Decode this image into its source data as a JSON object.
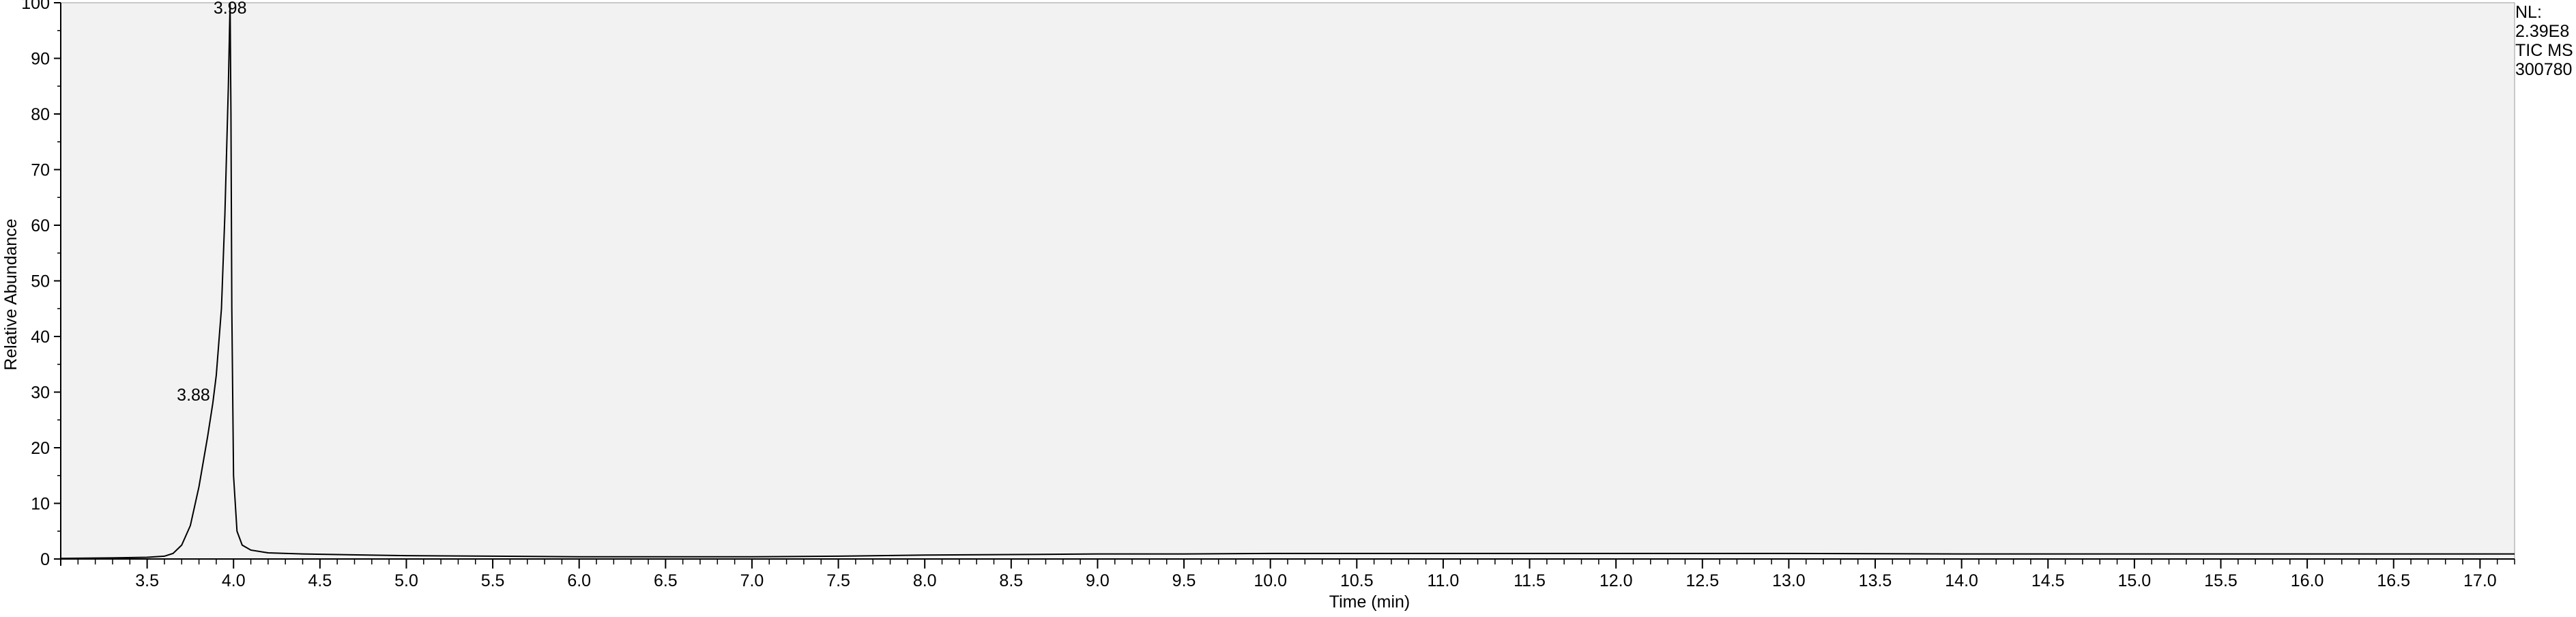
{
  "chart_data": {
    "type": "line",
    "title": "",
    "xlabel": "Time (min)",
    "ylabel": "Relative Abundance",
    "xlim": [
      3.0,
      17.2
    ],
    "ylim": [
      0,
      100
    ],
    "x_ticks": [
      "3.5",
      "4.0",
      "4.5",
      "5.0",
      "5.5",
      "6.0",
      "6.5",
      "7.0",
      "7.5",
      "8.0",
      "8.5",
      "9.0",
      "9.5",
      "10.0",
      "10.5",
      "11.0",
      "11.5",
      "12.0",
      "12.5",
      "13.0",
      "13.5",
      "14.0",
      "14.5",
      "15.0",
      "15.5",
      "16.0",
      "16.5",
      "17.0"
    ],
    "y_ticks": [
      "0",
      "10",
      "20",
      "30",
      "40",
      "50",
      "60",
      "70",
      "80",
      "90",
      "100"
    ],
    "series": [
      {
        "name": "TIC MS 300780",
        "x": [
          3.0,
          3.3,
          3.5,
          3.6,
          3.65,
          3.7,
          3.75,
          3.8,
          3.85,
          3.88,
          3.9,
          3.93,
          3.95,
          3.97,
          3.98,
          3.985,
          3.99,
          4.0,
          4.02,
          4.05,
          4.1,
          4.2,
          4.4,
          4.6,
          5.0,
          5.5,
          6.0,
          6.5,
          7.0,
          7.5,
          8.0,
          8.5,
          9.0,
          9.5,
          10.0,
          11.0,
          12.0,
          13.0,
          14.0,
          15.0,
          16.0,
          17.0,
          17.2
        ],
        "y": [
          0.1,
          0.2,
          0.3,
          0.5,
          1.0,
          2.5,
          6.0,
          13.0,
          22.0,
          28.0,
          33.0,
          45.0,
          62.0,
          85.0,
          100.0,
          80.0,
          45.0,
          15.0,
          5.0,
          2.5,
          1.6,
          1.1,
          0.9,
          0.8,
          0.6,
          0.5,
          0.4,
          0.4,
          0.4,
          0.5,
          0.7,
          0.8,
          0.9,
          0.9,
          1.0,
          1.0,
          1.0,
          1.0,
          0.9,
          0.9,
          0.9,
          0.9,
          0.9
        ]
      }
    ],
    "annotations": [
      {
        "label": "3.98",
        "x": 3.98,
        "y": 100
      },
      {
        "label": "3.88",
        "x": 3.88,
        "y": 28
      }
    ],
    "grid": false,
    "legend": "none"
  },
  "info_block": {
    "nl_label": "NL:",
    "nl_value": "2.39E8",
    "trace": "TIC  MS",
    "sample": "300780"
  },
  "colors": {
    "plot_background": "#f2f2f2",
    "trace": "#000000"
  }
}
